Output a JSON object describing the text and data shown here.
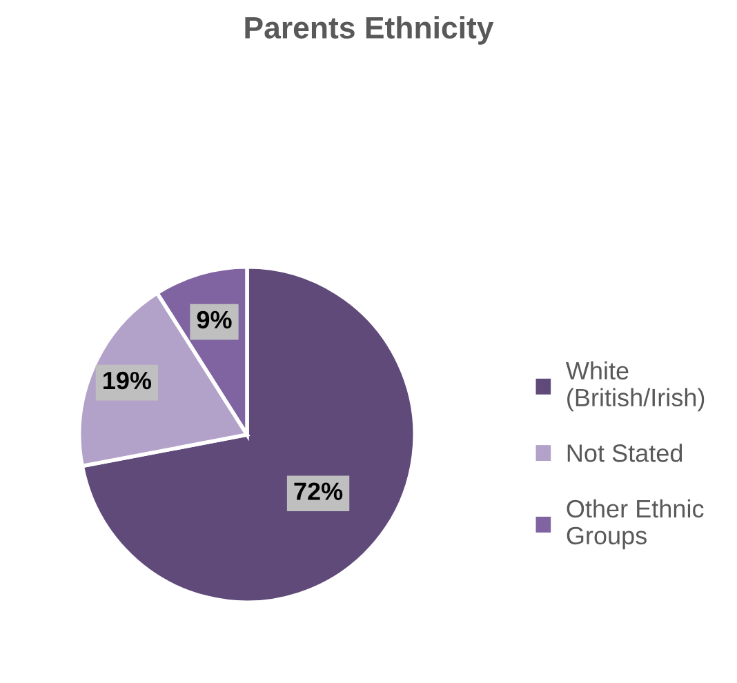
{
  "chart_data": {
    "type": "pie",
    "title": "Parents Ethnicity",
    "categories": [
      "White\n(British/Irish)",
      "Not Stated",
      "Other Ethnic\nGroups"
    ],
    "values": [
      72,
      19,
      9
    ],
    "colors": [
      "#5f4a7a",
      "#b2a1c8",
      "#8064a2"
    ],
    "value_labels": [
      "72%",
      "19%",
      "9%"
    ],
    "legend": "right"
  }
}
